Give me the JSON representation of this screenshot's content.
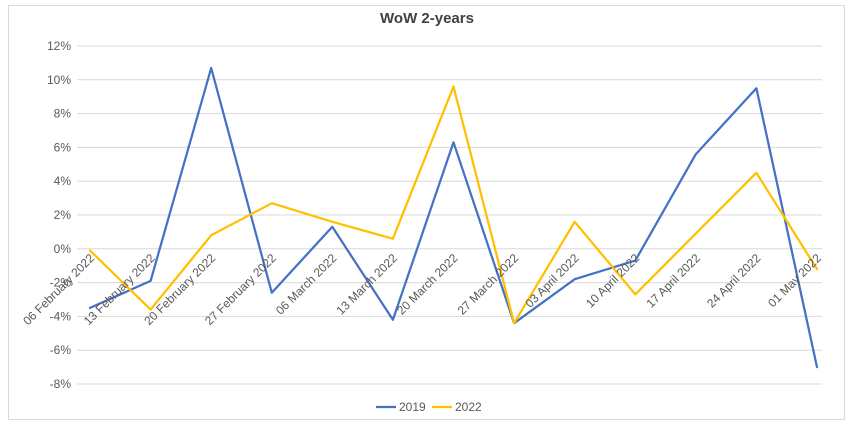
{
  "chart_data": {
    "type": "line",
    "title": "WoW 2-years",
    "categories": [
      "06 February 2022",
      "13 February 2022",
      "20 February 2022",
      "27 February 2022",
      "06 March 2022",
      "13 March 2022",
      "20 March 2022",
      "27 March 2022",
      "03 April 2022",
      "10 April 2022",
      "17 April 2022",
      "24 April 2022",
      "01 May 2022"
    ],
    "y_ticks": [
      "12%",
      "10%",
      "8%",
      "6%",
      "4%",
      "2%",
      "0%",
      "-2%",
      "-4%",
      "-6%",
      "-8%"
    ],
    "ylim": [
      -8,
      12
    ],
    "y_unit": "%",
    "grid": true,
    "legend_position": "bottom",
    "series": [
      {
        "name": "2019",
        "color": "#4472C4",
        "values": [
          -3.5,
          -1.9,
          10.7,
          -2.6,
          1.3,
          -4.2,
          6.3,
          -4.4,
          -1.8,
          -0.7,
          5.6,
          9.5,
          -7.0
        ]
      },
      {
        "name": "2022",
        "color": "#FFC000",
        "values": [
          -0.1,
          -3.6,
          0.8,
          2.7,
          1.6,
          0.6,
          9.6,
          -4.4,
          1.6,
          -2.7,
          0.9,
          4.5,
          -1.2
        ]
      }
    ]
  }
}
